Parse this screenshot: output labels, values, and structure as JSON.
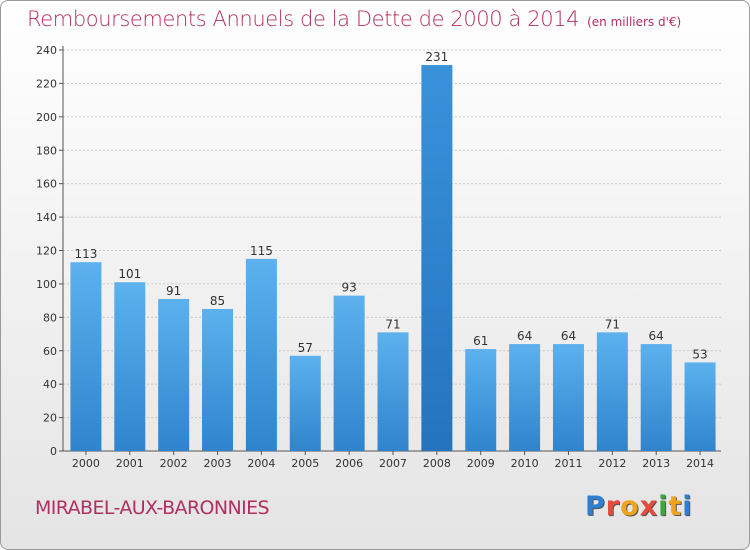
{
  "chart_data": {
    "type": "bar",
    "title": "Remboursements Annuels de la Dette de 2000 à 2014",
    "subtitle": "(en milliers d'€)",
    "xlabel": "",
    "ylabel": "",
    "categories": [
      "2000",
      "2001",
      "2002",
      "2003",
      "2004",
      "2005",
      "2006",
      "2007",
      "2008",
      "2009",
      "2010",
      "2011",
      "2012",
      "2013",
      "2014"
    ],
    "values": [
      113,
      101,
      91,
      85,
      115,
      57,
      93,
      71,
      231,
      61,
      64,
      64,
      71,
      64,
      53
    ],
    "ylim": [
      0,
      240
    ],
    "yticks": [
      0,
      20,
      40,
      60,
      80,
      100,
      120,
      140,
      160,
      180,
      200,
      220,
      240
    ],
    "grid": true,
    "bar_color": "#3f9be0",
    "highlight_color": "#2f7fc8"
  },
  "footer": {
    "commune": "MIRABEL-AUX-BARONNIES",
    "logo_letters": [
      "P",
      "r",
      "o",
      "x",
      "i",
      "t",
      "i"
    ]
  }
}
